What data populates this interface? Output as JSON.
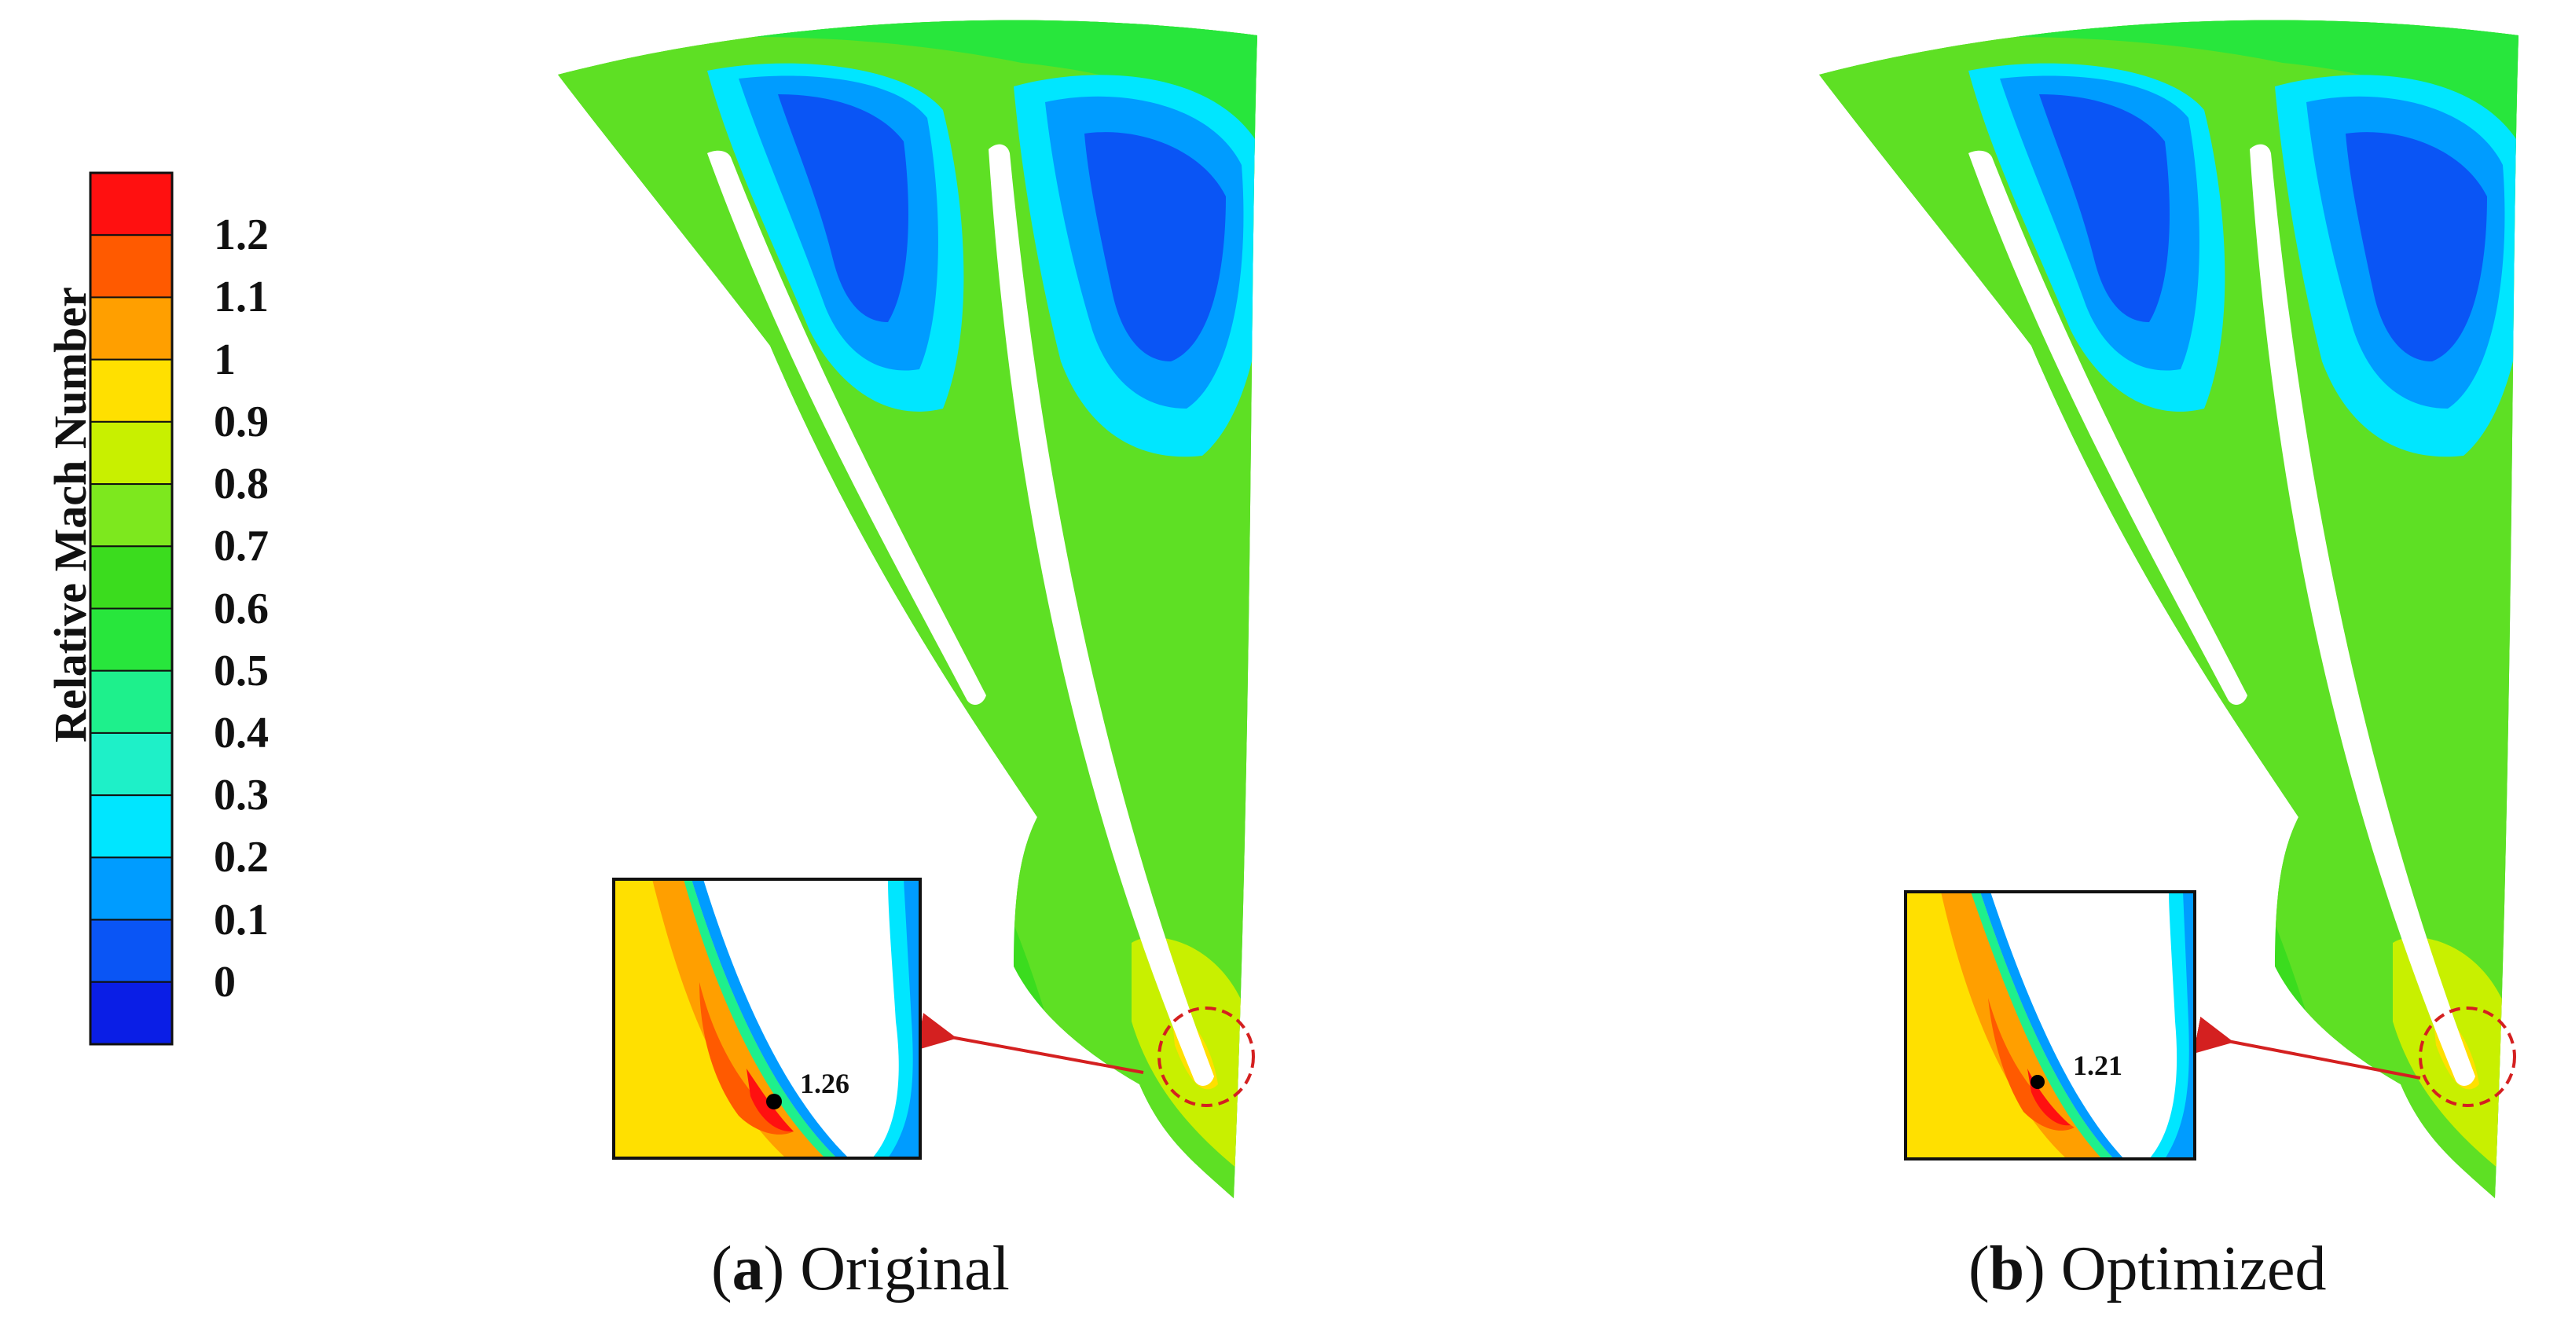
{
  "colorbar": {
    "title": "Relative Mach Number",
    "ticks": [
      "1.2",
      "1.1",
      "1",
      "0.9",
      "0.8",
      "0.7",
      "0.6",
      "0.5",
      "0.4",
      "0.3",
      "0.2",
      "0.1",
      "0"
    ],
    "colors": [
      "#ff1010",
      "#ff5a00",
      "#ff9f00",
      "#ffe000",
      "#c8f000",
      "#7de81e",
      "#3bdc1e",
      "#28e63c",
      "#1ef08c",
      "#1ef0c8",
      "#00e6ff",
      "#009cff",
      "#0a55f5",
      "#0a1ee6"
    ]
  },
  "panels": [
    {
      "caption_letter": "a",
      "caption_text": "Original",
      "inset_value": "1.26"
    },
    {
      "caption_letter": "b",
      "caption_text": "Optimized",
      "inset_value": "1.21"
    }
  ],
  "colors": {
    "arrow": "#d42020",
    "blade": "#ffffff"
  }
}
